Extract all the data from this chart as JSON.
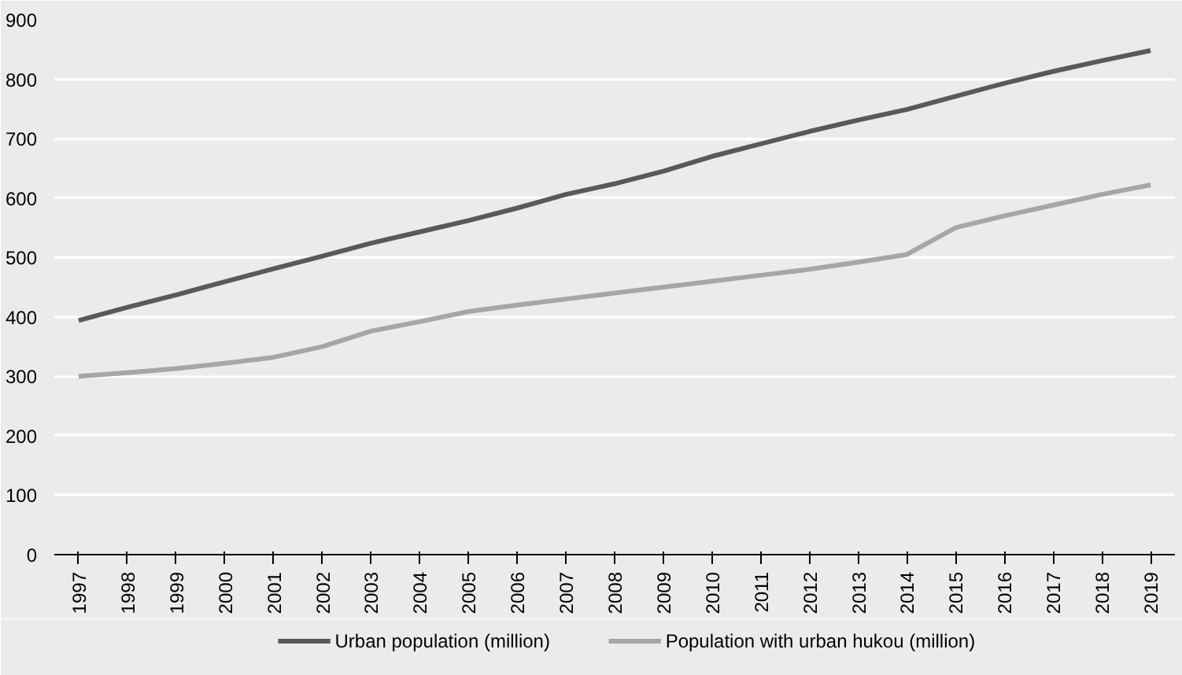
{
  "chart_data": {
    "type": "line",
    "categories": [
      "1997",
      "1998",
      "1999",
      "2000",
      "2001",
      "2002",
      "2003",
      "2004",
      "2005",
      "2006",
      "2007",
      "2008",
      "2009",
      "2010",
      "2011",
      "2012",
      "2013",
      "2014",
      "2015",
      "2016",
      "2017",
      "2018",
      "2019"
    ],
    "series": [
      {
        "name": "Urban population (million)",
        "color": "#595959",
        "values": [
          394,
          416,
          437,
          459,
          481,
          502,
          524,
          543,
          562,
          583,
          606,
          624,
          645,
          670,
          691,
          712,
          731,
          749,
          771,
          793,
          813,
          831,
          848
        ]
      },
      {
        "name": "Population with urban hukou (million)",
        "color": "#a6a6a6",
        "values": [
          300,
          306,
          313,
          322,
          332,
          350,
          376,
          392,
          409,
          420,
          430,
          440,
          450,
          460,
          470,
          480,
          492,
          505,
          550,
          570,
          588,
          606,
          622
        ]
      }
    ],
    "ylim": [
      0,
      900
    ],
    "yticks": [
      0,
      100,
      200,
      300,
      400,
      500,
      600,
      700,
      800,
      900
    ],
    "grid": "y",
    "legend": "bottom",
    "marker": "none",
    "line_style": "solid"
  }
}
